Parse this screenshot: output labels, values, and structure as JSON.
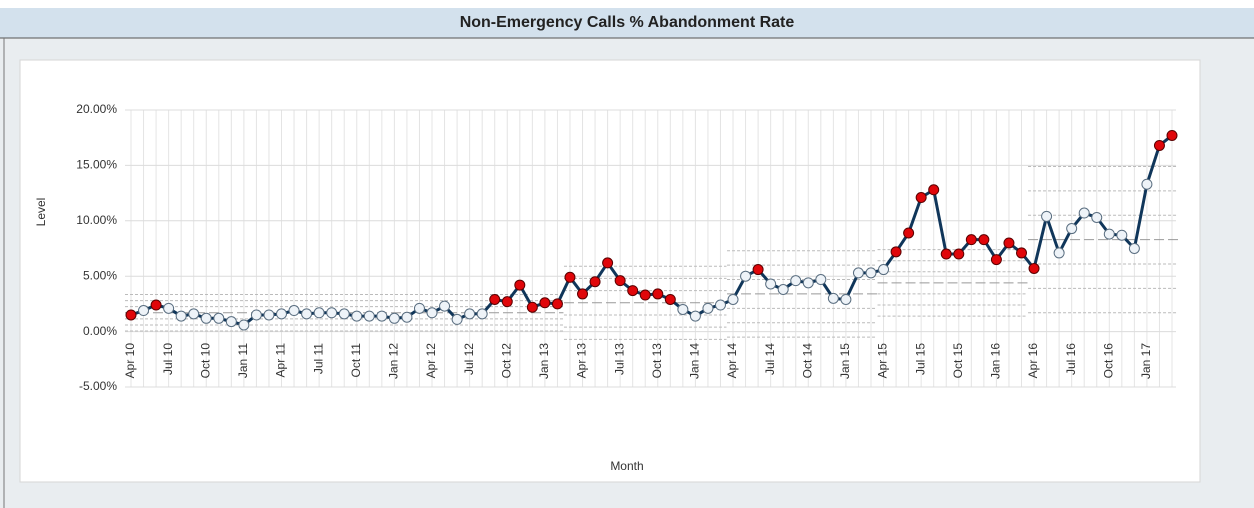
{
  "chart_data": {
    "type": "control",
    "title": "Non-Emergency Calls % Abandonment Rate",
    "x_label": "Month",
    "y_label": "Level",
    "categories": [
      "Apr 10",
      null,
      null,
      "Jul 10",
      null,
      null,
      "Oct 10",
      null,
      null,
      "Jan 11",
      null,
      null,
      "Apr 11",
      null,
      null,
      "Jul 11",
      null,
      null,
      "Oct 11",
      null,
      null,
      "Jan 12",
      null,
      null,
      "Apr 12",
      null,
      null,
      "Jul 12",
      null,
      null,
      "Oct 12",
      null,
      null,
      "Jan 13",
      null,
      null,
      "Apr 13",
      null,
      null,
      "Jul 13",
      null,
      null,
      "Oct 13",
      null,
      null,
      "Jan 14",
      null,
      null,
      "Apr 14",
      null,
      null,
      "Jul 14",
      null,
      null,
      "Oct 14",
      null,
      null,
      "Jan 15",
      null,
      null,
      "Apr 15",
      null,
      null,
      "Jul 15",
      null,
      null,
      "Oct 15",
      null,
      null,
      "Jan 16",
      null,
      null,
      "Apr 16",
      null,
      null,
      "Jul 16",
      null,
      null,
      "Oct 16",
      null,
      null,
      "Jan 17",
      null,
      null
    ],
    "values": [
      1.5,
      1.9,
      2.4,
      2.1,
      1.4,
      1.6,
      1.2,
      1.2,
      0.9,
      0.6,
      1.5,
      1.5,
      1.6,
      1.9,
      1.6,
      1.7,
      1.7,
      1.6,
      1.4,
      1.4,
      1.4,
      1.2,
      1.3,
      2.1,
      1.7,
      2.3,
      1.1,
      1.6,
      1.6,
      2.9,
      2.7,
      4.2,
      2.2,
      2.6,
      2.5,
      4.9,
      3.4,
      4.5,
      6.2,
      4.6,
      3.7,
      3.3,
      3.4,
      2.9,
      2.0,
      1.4,
      2.1,
      2.4,
      2.9,
      5.0,
      5.6,
      4.3,
      3.8,
      4.6,
      4.4,
      4.7,
      3.0,
      2.9,
      5.3,
      5.3,
      5.6,
      7.2,
      8.9,
      12.1,
      12.8,
      7.0,
      7.0,
      8.3,
      8.3,
      6.5,
      8.0,
      7.1,
      5.7,
      10.4,
      7.1,
      9.3,
      10.7,
      10.3,
      8.8,
      8.7,
      7.5,
      13.3,
      16.8,
      17.7
    ],
    "out_of_control": [
      true,
      false,
      true,
      false,
      false,
      false,
      false,
      false,
      false,
      false,
      false,
      false,
      false,
      false,
      false,
      false,
      false,
      false,
      false,
      false,
      false,
      false,
      false,
      false,
      false,
      false,
      false,
      false,
      false,
      true,
      true,
      true,
      true,
      true,
      true,
      true,
      true,
      true,
      true,
      true,
      true,
      true,
      true,
      true,
      false,
      false,
      false,
      false,
      false,
      false,
      true,
      false,
      false,
      false,
      false,
      false,
      false,
      false,
      false,
      false,
      false,
      true,
      true,
      true,
      true,
      true,
      true,
      true,
      true,
      true,
      true,
      true,
      true,
      false,
      false,
      false,
      false,
      false,
      false,
      false,
      false,
      false,
      true,
      true
    ],
    "color": "#10365a",
    "signal_color": "#e0060a",
    "normal_color": "#eef3f8",
    "phases": [
      {
        "start": 0,
        "end": 34,
        "center": 1.7,
        "limits": [
          3.35,
          2.8,
          2.25,
          1.15,
          0.6,
          0.05
        ]
      },
      {
        "start": 35,
        "end": 47,
        "center": 2.6,
        "limits": [
          5.9,
          4.8,
          3.7,
          1.5,
          0.4,
          -0.7
        ]
      },
      {
        "start": 48,
        "end": 59,
        "center": 3.4,
        "limits": [
          7.3,
          6.0,
          4.7,
          2.1,
          0.8,
          -0.5
        ]
      },
      {
        "start": 60,
        "end": 71,
        "center": 4.4,
        "limits": [
          7.4,
          6.4,
          5.4,
          3.4,
          2.4,
          1.4
        ]
      },
      {
        "start": 72,
        "end": 83,
        "center": 8.3,
        "limits": [
          14.9,
          12.7,
          10.5,
          6.1,
          3.9,
          1.7
        ]
      }
    ],
    "ylim": [
      -5,
      20
    ],
    "yticks": [
      {
        "value": -5,
        "label": "-5.00%"
      },
      {
        "value": 0,
        "label": "0.00%"
      },
      {
        "value": 5,
        "label": "5.00%"
      },
      {
        "value": 10,
        "label": "10.00%"
      },
      {
        "value": 15,
        "label": "15.00%"
      },
      {
        "value": 20,
        "label": "20.00%"
      }
    ],
    "grid": true
  }
}
